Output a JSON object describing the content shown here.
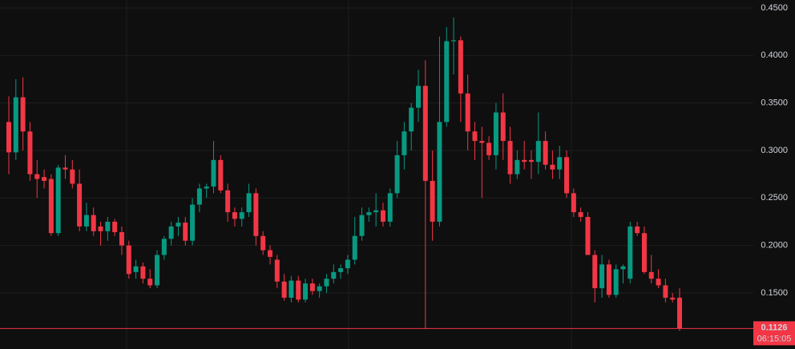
{
  "chart_data": {
    "type": "candlestick",
    "up_color": "#089981",
    "down_color": "#f23645",
    "open": [
      0.33,
      0.298,
      0.356,
      0.32,
      0.275,
      0.272,
      0.27,
      0.213,
      0.282,
      0.28,
      0.265,
      0.22,
      0.232,
      0.22,
      0.215,
      0.225,
      0.214,
      0.2,
      0.172,
      0.178,
      0.165,
      0.158,
      0.19,
      0.207,
      0.22,
      0.224,
      0.205,
      0.243,
      0.26,
      0.262,
      0.29,
      0.258,
      0.235,
      0.228,
      0.235,
      0.255,
      0.21,
      0.195,
      0.185,
      0.162,
      0.145,
      0.163,
      0.143,
      0.16,
      0.152,
      0.157,
      0.165,
      0.172,
      0.176,
      0.185,
      0.21,
      0.232,
      0.235,
      0.237,
      0.225,
      0.255,
      0.295,
      0.32,
      0.345,
      0.368,
      0.268,
      0.225,
      0.33,
      0.415,
      0.416,
      0.36,
      0.32,
      0.31,
      0.308,
      0.295,
      0.34,
      0.31,
      0.275,
      0.29,
      0.29,
      0.288,
      0.31,
      0.285,
      0.28,
      0.293,
      0.255,
      0.235,
      0.23,
      0.19,
      0.155,
      0.18,
      0.148,
      0.175,
      0.165,
      0.22,
      0.213,
      0.172,
      0.165,
      0.158,
      0.145,
      0.145
    ],
    "high": [
      0.357,
      0.375,
      0.377,
      0.33,
      0.29,
      0.28,
      0.275,
      0.285,
      0.295,
      0.29,
      0.28,
      0.245,
      0.24,
      0.225,
      0.23,
      0.228,
      0.22,
      0.205,
      0.185,
      0.182,
      0.175,
      0.195,
      0.21,
      0.225,
      0.23,
      0.23,
      0.25,
      0.265,
      0.265,
      0.31,
      0.295,
      0.265,
      0.24,
      0.24,
      0.265,
      0.26,
      0.215,
      0.2,
      0.19,
      0.17,
      0.168,
      0.168,
      0.165,
      0.165,
      0.16,
      0.17,
      0.18,
      0.18,
      0.19,
      0.23,
      0.24,
      0.24,
      0.255,
      0.245,
      0.26,
      0.31,
      0.33,
      0.35,
      0.385,
      0.395,
      0.3,
      0.42,
      0.43,
      0.44,
      0.42,
      0.38,
      0.33,
      0.325,
      0.315,
      0.35,
      0.36,
      0.325,
      0.3,
      0.31,
      0.3,
      0.34,
      0.32,
      0.3,
      0.305,
      0.3,
      0.26,
      0.24,
      0.235,
      0.195,
      0.19,
      0.185,
      0.18,
      0.18,
      0.225,
      0.225,
      0.22,
      0.19,
      0.175,
      0.165,
      0.15,
      0.155
    ],
    "low": [
      0.275,
      0.29,
      0.3,
      0.268,
      0.25,
      0.26,
      0.21,
      0.21,
      0.27,
      0.26,
      0.215,
      0.215,
      0.21,
      0.2,
      0.205,
      0.21,
      0.19,
      0.165,
      0.165,
      0.16,
      0.155,
      0.155,
      0.185,
      0.2,
      0.21,
      0.2,
      0.2,
      0.235,
      0.25,
      0.255,
      0.255,
      0.225,
      0.22,
      0.22,
      0.23,
      0.2,
      0.19,
      0.18,
      0.155,
      0.142,
      0.14,
      0.14,
      0.14,
      0.148,
      0.145,
      0.15,
      0.16,
      0.165,
      0.17,
      0.18,
      0.205,
      0.225,
      0.22,
      0.22,
      0.22,
      0.25,
      0.28,
      0.3,
      0.33,
      0.112,
      0.205,
      0.22,
      0.325,
      0.38,
      0.33,
      0.3,
      0.29,
      0.25,
      0.29,
      0.28,
      0.29,
      0.265,
      0.27,
      0.28,
      0.27,
      0.275,
      0.28,
      0.27,
      0.27,
      0.25,
      0.23,
      0.225,
      0.19,
      0.14,
      0.145,
      0.145,
      0.145,
      0.16,
      0.16,
      0.21,
      0.17,
      0.16,
      0.155,
      0.14,
      0.14,
      0.11
    ],
    "close": [
      0.298,
      0.356,
      0.32,
      0.275,
      0.27,
      0.268,
      0.213,
      0.282,
      0.28,
      0.265,
      0.22,
      0.232,
      0.215,
      0.215,
      0.225,
      0.214,
      0.2,
      0.17,
      0.178,
      0.165,
      0.158,
      0.19,
      0.207,
      0.22,
      0.224,
      0.205,
      0.243,
      0.26,
      0.262,
      0.29,
      0.258,
      0.235,
      0.228,
      0.235,
      0.255,
      0.21,
      0.195,
      0.188,
      0.162,
      0.145,
      0.163,
      0.143,
      0.16,
      0.152,
      0.157,
      0.165,
      0.172,
      0.176,
      0.185,
      0.21,
      0.232,
      0.235,
      0.237,
      0.225,
      0.255,
      0.295,
      0.32,
      0.345,
      0.368,
      0.268,
      0.225,
      0.33,
      0.415,
      0.416,
      0.36,
      0.32,
      0.31,
      0.308,
      0.295,
      0.34,
      0.31,
      0.275,
      0.29,
      0.288,
      0.288,
      0.31,
      0.285,
      0.28,
      0.293,
      0.255,
      0.235,
      0.23,
      0.19,
      0.155,
      0.18,
      0.148,
      0.175,
      0.178,
      0.22,
      0.213,
      0.172,
      0.165,
      0.158,
      0.145,
      0.143,
      0.1126
    ],
    "ylim": [
      0.091,
      0.4584
    ],
    "yticks": [
      {
        "value": 0.45,
        "label": "0.4500"
      },
      {
        "value": 0.4,
        "label": "0.4000"
      },
      {
        "value": 0.35,
        "label": "0.3500"
      },
      {
        "value": 0.3,
        "label": "0.3000"
      },
      {
        "value": 0.25,
        "label": "0.2500"
      },
      {
        "value": 0.2,
        "label": "0.2000"
      },
      {
        "value": 0.15,
        "label": "0.1500"
      }
    ],
    "grid": true,
    "last_price": 0.1126,
    "countdown": "06:15:05"
  }
}
